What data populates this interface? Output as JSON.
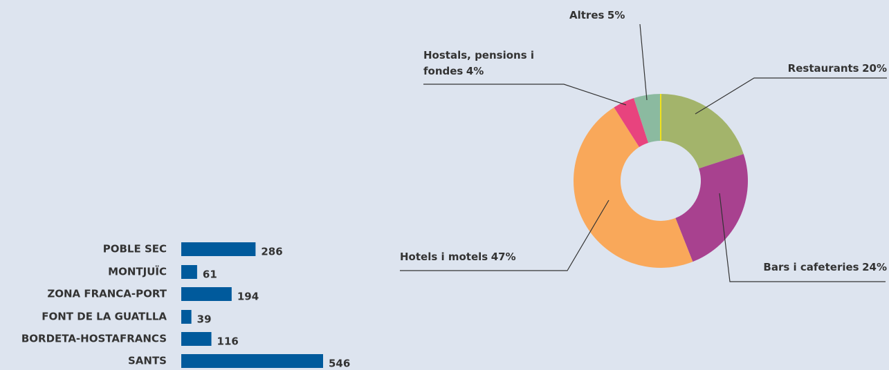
{
  "chart_data": [
    {
      "type": "barh",
      "categories": [
        "POBLE SEC",
        "MONTJUÏC",
        "ZONA FRANCA-PORT",
        "FONT DE LA GUATLLA",
        "BORDETA-HOSTAFRANCS",
        "SANTS"
      ],
      "values": [
        286,
        61,
        194,
        39,
        116,
        546
      ],
      "color": "#005a9c"
    },
    {
      "type": "donut",
      "categories": [
        "Restaurants",
        "Bars i cafeteries",
        "Hotels i motels",
        "Hostals, pensions i fondes",
        "Altres"
      ],
      "values": [
        20,
        24,
        47,
        4,
        5
      ],
      "value_labels": [
        "20%",
        "24%",
        "47%",
        "4%",
        "5%"
      ],
      "colors": [
        "#a3b46b",
        "#a8418f",
        "#f9a85a",
        "#e8437e",
        "#8bbaa0"
      ]
    }
  ]
}
